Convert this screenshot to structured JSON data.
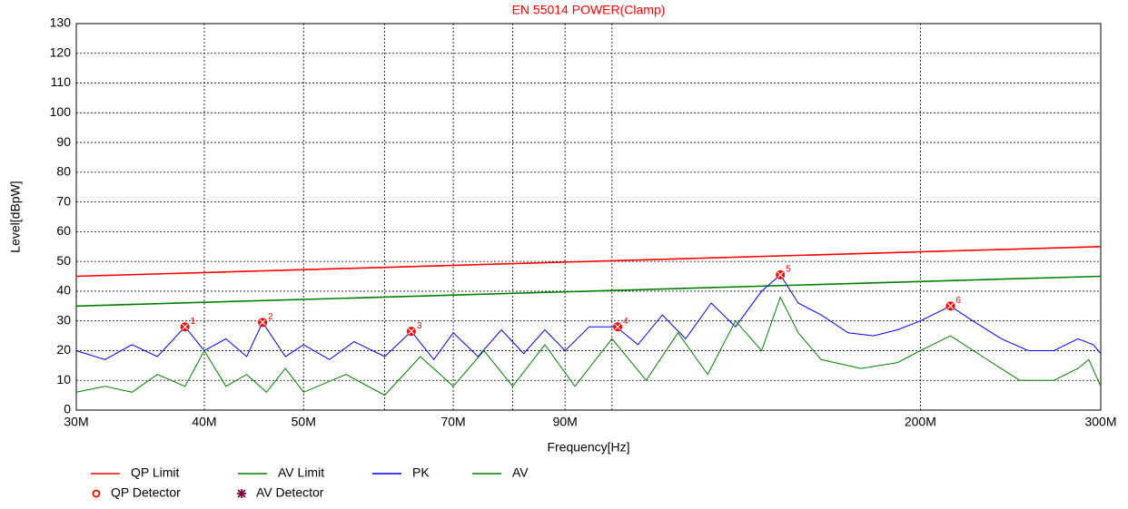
{
  "chart_data": {
    "type": "line",
    "title": "EN 55014 POWER(Clamp)",
    "x_label": "Frequency[Hz]",
    "y_label": "Level[dBpW]",
    "log_x": true,
    "grid": true,
    "xlim": [
      30000000,
      300000000
    ],
    "ylim": [
      0,
      130
    ],
    "yticks": [
      0,
      10,
      20,
      30,
      40,
      50,
      60,
      70,
      80,
      90,
      100,
      110,
      120,
      130
    ],
    "xticks": [
      {
        "value": 30000000,
        "label": "30M"
      },
      {
        "value": 40000000,
        "label": "40M"
      },
      {
        "value": 50000000,
        "label": "50M"
      },
      {
        "value": 60000000,
        "label": null
      },
      {
        "value": 70000000,
        "label": "70M"
      },
      {
        "value": 80000000,
        "label": null
      },
      {
        "value": 90000000,
        "label": "90M"
      },
      {
        "value": 100000000,
        "label": null
      },
      {
        "value": 200000000,
        "label": "200M"
      },
      {
        "value": 300000000,
        "label": "300M"
      }
    ],
    "series": [
      {
        "name": "QP Limit",
        "color": "#ff0000",
        "x": [
          30000000,
          300000000
        ],
        "values": [
          45,
          55
        ]
      },
      {
        "name": "AV Limit",
        "color": "#008000",
        "x": [
          30000000,
          300000000
        ],
        "values": [
          35,
          45
        ]
      },
      {
        "name": "PK",
        "color": "#0000ff",
        "x": [
          30000000,
          32000000,
          34000000,
          36000000,
          38300000,
          40000000,
          42000000,
          44000000,
          45600000,
          48000000,
          50000000,
          53000000,
          56000000,
          60000000,
          63700000,
          67000000,
          70000000,
          74000000,
          78000000,
          82000000,
          86000000,
          90000000,
          95000000,
          101000000,
          106000000,
          112000000,
          118000000,
          125000000,
          132000000,
          140000000,
          146000000,
          152000000,
          160000000,
          170000000,
          180000000,
          190000000,
          200000000,
          214000000,
          225000000,
          240000000,
          255000000,
          270000000,
          285000000,
          295000000,
          300000000
        ],
        "values": [
          20,
          17,
          22,
          18,
          28,
          20,
          24,
          18,
          29.5,
          18,
          22,
          17,
          23,
          18,
          26.5,
          17,
          26,
          18,
          27,
          19,
          27,
          20,
          28,
          28,
          22,
          32,
          24,
          36,
          28,
          40,
          45.5,
          36,
          32,
          26,
          25,
          27,
          30,
          35,
          30,
          24,
          20,
          20,
          24,
          22,
          19
        ]
      },
      {
        "name": "AV",
        "color": "#008000",
        "x": [
          30000000,
          32000000,
          34000000,
          36000000,
          38300000,
          40000000,
          42000000,
          44000000,
          46000000,
          48000000,
          50000000,
          55000000,
          60000000,
          65000000,
          70000000,
          75000000,
          80000000,
          86000000,
          92000000,
          100000000,
          108000000,
          116000000,
          124000000,
          132000000,
          140000000,
          146000000,
          152000000,
          160000000,
          175000000,
          190000000,
          200000000,
          214000000,
          230000000,
          250000000,
          270000000,
          285000000,
          292000000,
          300000000
        ],
        "values": [
          6,
          8,
          6,
          12,
          8,
          20,
          8,
          12,
          6,
          14,
          6,
          12,
          5,
          18,
          8,
          20,
          8,
          22,
          8,
          24,
          10,
          26,
          12,
          30,
          20,
          38,
          26,
          17,
          14,
          16,
          20,
          25,
          18,
          10,
          10,
          14,
          17,
          8
        ]
      }
    ],
    "detectors": [
      {
        "name": "QP Detector",
        "color": "#ff0000",
        "x": [
          38300000,
          45600000,
          63700000,
          101300000,
          146000000,
          214000000
        ],
        "values": [
          28,
          29.5,
          26.5,
          28,
          45.5,
          35
        ],
        "labels": [
          "1",
          "2",
          "3",
          "4",
          "5",
          "6"
        ]
      },
      {
        "name": "AV Detector",
        "color": "#800040"
      }
    ]
  }
}
